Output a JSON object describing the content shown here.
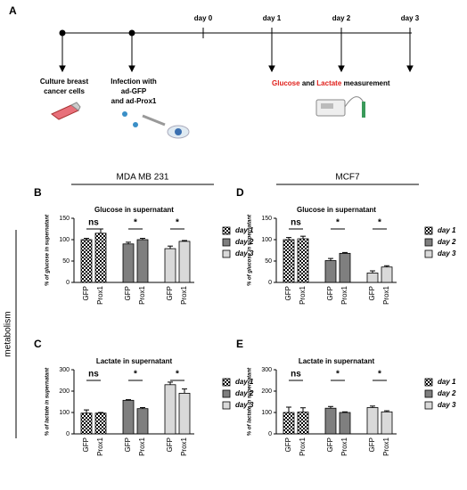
{
  "panels": [
    "A"
  ],
  "timeline": {
    "days": [
      "day 0",
      "day 1",
      "day 2",
      "day 3"
    ],
    "step1": [
      "Culture breast",
      "cancer cells"
    ],
    "step2": [
      "Infection with",
      "ad-GFP",
      "and ad-Prox1"
    ],
    "measure": [
      "Glucose",
      "and",
      "Lactate",
      "measurement"
    ]
  },
  "columns": [
    "MDA MB 231",
    "MCF7"
  ],
  "row_label": "metabolism",
  "chart_data": [
    {
      "type": "bar",
      "panel": "B",
      "title": "Glucose in supernatant",
      "ylabel": "% of glucose in supernatant",
      "ylim": [
        0,
        150
      ],
      "yticks": [
        0,
        50,
        100,
        150
      ],
      "series": [
        {
          "name": "day 1",
          "color": "#ffffff",
          "pattern": "checker",
          "categories": [
            "GFP",
            "Prox1"
          ],
          "values": [
            100,
            115
          ],
          "errors": [
            3,
            10
          ],
          "annotation": "ns"
        },
        {
          "name": "day 2",
          "color": "#7f7f7f",
          "categories": [
            "GFP",
            "Prox1"
          ],
          "values": [
            90,
            100
          ],
          "errors": [
            4,
            3
          ],
          "annotation": "*"
        },
        {
          "name": "day 3",
          "color": "#d9d9d9",
          "categories": [
            "GFP",
            "Prox1"
          ],
          "values": [
            79,
            96
          ],
          "errors": [
            6,
            2
          ],
          "annotation": "*"
        }
      ]
    },
    {
      "type": "bar",
      "panel": "C",
      "title": "Lactate in supernatant",
      "ylabel": "% of lactate in supernatant",
      "ylim": [
        0,
        300
      ],
      "yticks": [
        0,
        100,
        200,
        300
      ],
      "series": [
        {
          "name": "day 1",
          "color": "#ffffff",
          "pattern": "checker",
          "categories": [
            "GFP",
            "Prox1"
          ],
          "values": [
            97,
            97
          ],
          "errors": [
            15,
            3
          ],
          "annotation": "ns"
        },
        {
          "name": "day 2",
          "color": "#7f7f7f",
          "categories": [
            "GFP",
            "Prox1"
          ],
          "values": [
            157,
            118
          ],
          "errors": [
            3,
            5
          ],
          "annotation": "*"
        },
        {
          "name": "day 3",
          "color": "#d9d9d9",
          "categories": [
            "GFP",
            "Prox1"
          ],
          "values": [
            230,
            190
          ],
          "errors": [
            12,
            20
          ],
          "annotation": "*"
        }
      ]
    },
    {
      "type": "bar",
      "panel": "D",
      "title": "Glucose in supernatant",
      "ylabel": "% of glucose in supernatant",
      "ylim": [
        0,
        150
      ],
      "yticks": [
        0,
        50,
        100,
        150
      ],
      "series": [
        {
          "name": "day 1",
          "color": "#ffffff",
          "pattern": "checker",
          "categories": [
            "GFP",
            "Prox1"
          ],
          "values": [
            100,
            102
          ],
          "errors": [
            5,
            6
          ],
          "annotation": "ns"
        },
        {
          "name": "day 2",
          "color": "#7f7f7f",
          "categories": [
            "GFP",
            "Prox1"
          ],
          "values": [
            51,
            68
          ],
          "errors": [
            5,
            2
          ],
          "annotation": "*"
        },
        {
          "name": "day 3",
          "color": "#d9d9d9",
          "categories": [
            "GFP",
            "Prox1"
          ],
          "values": [
            22,
            36
          ],
          "errors": [
            5,
            3
          ],
          "annotation": "*"
        }
      ]
    },
    {
      "type": "bar",
      "panel": "E",
      "title": "Lactate in supernatant",
      "ylabel": "% of lactate in supernatant",
      "ylim": [
        0,
        300
      ],
      "yticks": [
        0,
        100,
        200,
        300
      ],
      "series": [
        {
          "name": "day 1",
          "color": "#ffffff",
          "pattern": "checker",
          "categories": [
            "GFP",
            "Prox1"
          ],
          "values": [
            100,
            102
          ],
          "errors": [
            25,
            20
          ],
          "annotation": "ns"
        },
        {
          "name": "day 2",
          "color": "#7f7f7f",
          "categories": [
            "GFP",
            "Prox1"
          ],
          "values": [
            120,
            100
          ],
          "errors": [
            8,
            3
          ],
          "annotation": "*"
        },
        {
          "name": "day 3",
          "color": "#d9d9d9",
          "categories": [
            "GFP",
            "Prox1"
          ],
          "values": [
            123,
            103
          ],
          "errors": [
            7,
            5
          ],
          "annotation": "*"
        }
      ]
    }
  ]
}
